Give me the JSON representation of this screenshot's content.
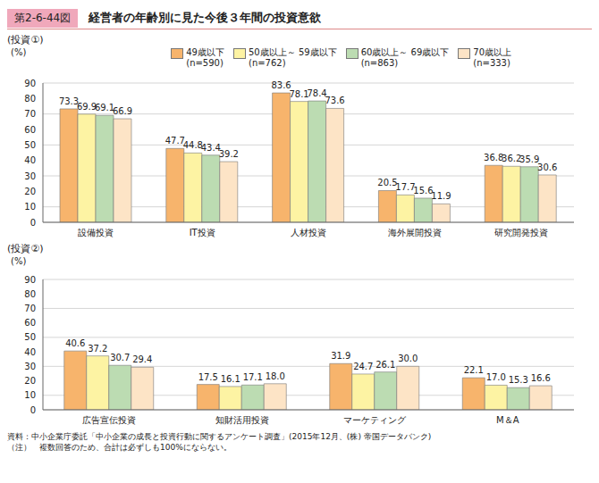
{
  "figure_label": "第2-6-44図",
  "title": "経営者の年齢別に見た今後３年間の投資意欲",
  "notes": [
    "資料：中小企業庁委託「中小企業の成長と投資行動に関するアンケート調査」(2015年12月、(株) 帝国データバンク)",
    "（注）　複数回答のため、合計は必ずしも100%にならない。"
  ],
  "chart_data": [
    {
      "type": "bar",
      "subtitle": "(投資①)",
      "y_label": "(%)",
      "categories": [
        "設備投資",
        "IT投資",
        "人材投資",
        "海外展開投資",
        "研究開発投資"
      ],
      "series": [
        {
          "name": "49歳以下\n(n=590)",
          "color": "#f7b46c",
          "values": [
            73.3,
            47.7,
            83.6,
            20.5,
            36.8
          ]
        },
        {
          "name": "50歳以上～ 59歳以下\n(n=762)",
          "color": "#fdf3a3",
          "values": [
            69.9,
            44.8,
            78.1,
            17.7,
            36.2
          ]
        },
        {
          "name": "60歳以上～ 69歳以下\n(n=863)",
          "color": "#bcdcb2",
          "values": [
            69.1,
            43.4,
            78.4,
            15.6,
            35.9
          ]
        },
        {
          "name": "70歳以上\n(n=333)",
          "color": "#fde4c6",
          "values": [
            66.9,
            39.2,
            73.6,
            11.9,
            30.6
          ]
        }
      ],
      "ylim": [
        0,
        90
      ],
      "yticks": [
        0,
        10,
        20,
        30,
        40,
        50,
        60,
        70,
        80,
        90
      ],
      "grid": true,
      "data_labels": true,
      "legend": "top-right"
    },
    {
      "type": "bar",
      "subtitle": "(投資②)",
      "y_label": "(%)",
      "categories": [
        "広告宣伝投資",
        "知財活用投資",
        "マーケティング",
        "M＆A"
      ],
      "series": [
        {
          "color": "#f7b46c",
          "values": [
            40.6,
            17.5,
            31.9,
            22.1
          ]
        },
        {
          "color": "#fdf3a3",
          "values": [
            37.2,
            16.1,
            24.7,
            17
          ],
          "value_labels": [
            "37.2",
            "16.1",
            "24.7",
            "17.0"
          ]
        },
        {
          "color": "#bcdcb2",
          "values": [
            30.7,
            17.1,
            26.1,
            15.3
          ]
        },
        {
          "color": "#fde4c6",
          "values": [
            29.4,
            18,
            30,
            16.6
          ],
          "value_labels": [
            "29.4",
            "18.0",
            "30.0",
            "16.6"
          ]
        }
      ],
      "ylim": [
        0,
        90
      ],
      "yticks": [
        0,
        10,
        20,
        30,
        40,
        50,
        60,
        70,
        80,
        90
      ],
      "grid": true,
      "data_labels": true
    }
  ]
}
